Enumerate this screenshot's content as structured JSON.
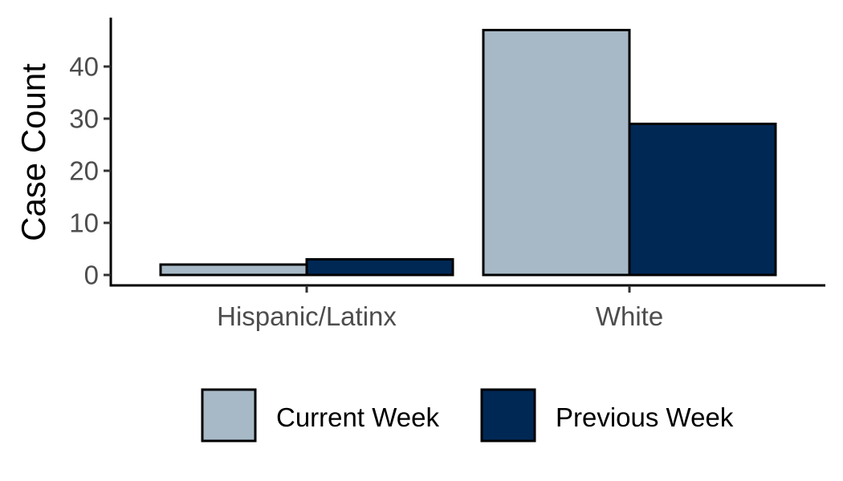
{
  "chart_data": {
    "type": "bar",
    "title": "",
    "xlabel": "",
    "ylabel": "Case Count",
    "categories": [
      "Hispanic/Latinx",
      "White"
    ],
    "series": [
      {
        "name": "Current Week",
        "values": [
          2,
          47
        ],
        "color": "#a7b9c6"
      },
      {
        "name": "Previous Week",
        "values": [
          3,
          29
        ],
        "color": "#002855"
      }
    ],
    "y_ticks": [
      0,
      10,
      20,
      30,
      40
    ],
    "ylim": [
      0,
      47
    ],
    "grid": false,
    "legend_position": "bottom",
    "bar_outline_color": "#000000"
  }
}
